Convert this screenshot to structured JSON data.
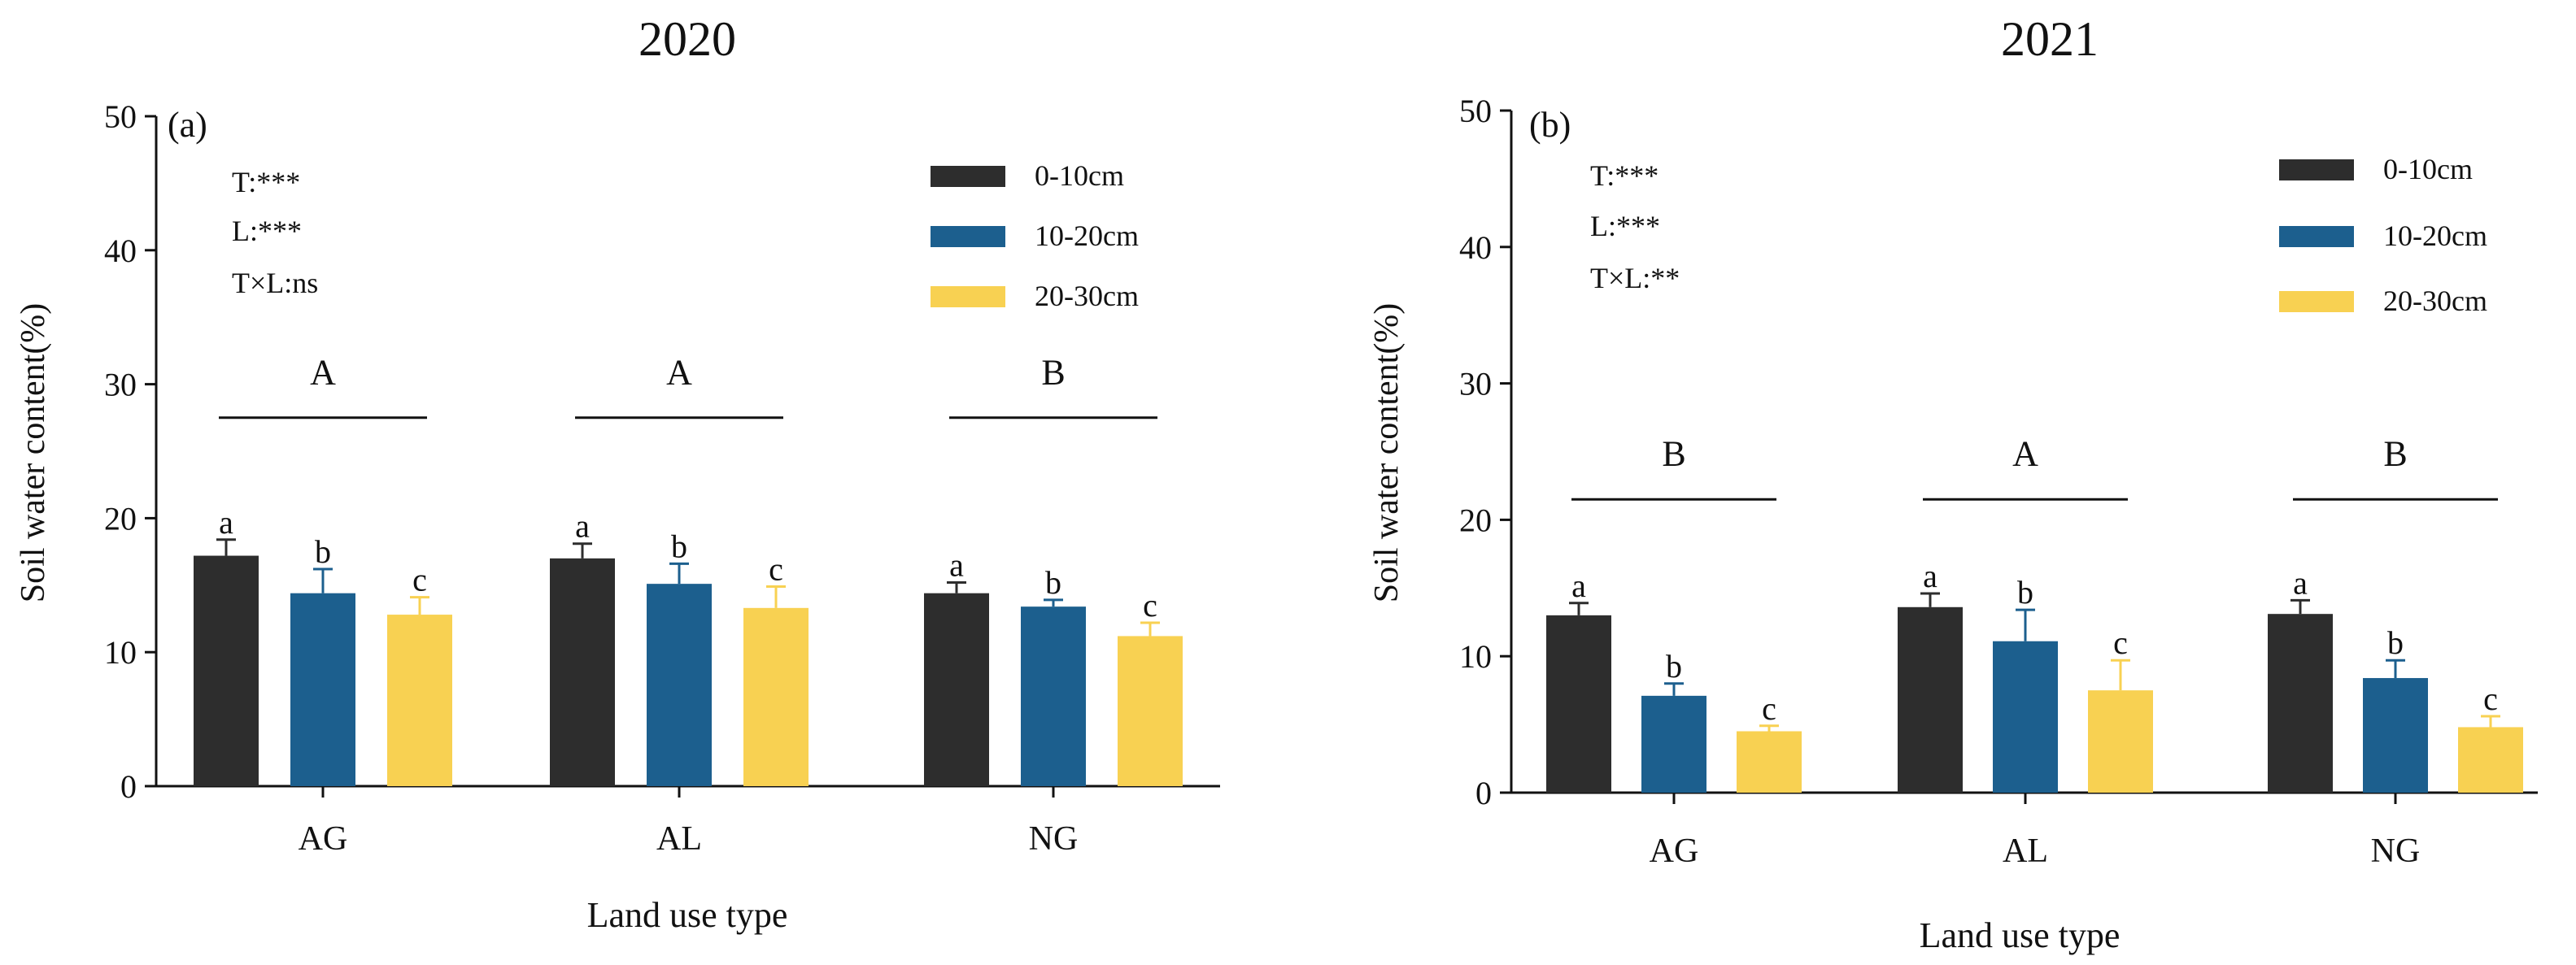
{
  "chart_data": [
    {
      "type": "bar",
      "title": "2020",
      "panel_label": "(a)",
      "xlabel": "Land use type",
      "ylabel": "Soil water content(%)",
      "ylim": [
        0,
        50
      ],
      "yticks": [
        "0",
        "10",
        "20",
        "30",
        "40",
        "50"
      ],
      "categories": [
        "AG",
        "AL",
        "NG"
      ],
      "series": [
        {
          "name": "0-10cm",
          "color": "#2d2d2d",
          "values": [
            17.2,
            17.0,
            14.4
          ],
          "errors": [
            1.2,
            1.1,
            0.8
          ],
          "letters": [
            "a",
            "a",
            "a"
          ]
        },
        {
          "name": "10-20cm",
          "color": "#1c5f8e",
          "values": [
            14.4,
            15.1,
            13.4
          ],
          "errors": [
            1.8,
            1.5,
            0.5
          ],
          "letters": [
            "b",
            "b",
            "b"
          ]
        },
        {
          "name": "20-30cm",
          "color": "#f8d152",
          "values": [
            12.8,
            13.3,
            11.2
          ],
          "errors": [
            1.3,
            1.6,
            1.0
          ],
          "letters": [
            "c",
            "c",
            "c"
          ]
        }
      ],
      "group_letters": [
        "A",
        "A",
        "B"
      ],
      "stats": [
        "T:***",
        "L:***",
        "T×L:ns"
      ]
    },
    {
      "type": "bar",
      "title": "2021",
      "panel_label": "(b)",
      "xlabel": "Land use type",
      "ylabel": "Soil water content(%)",
      "ylim": [
        0,
        50
      ],
      "yticks": [
        "0",
        "10",
        "20",
        "30",
        "40",
        "50"
      ],
      "categories": [
        "AG",
        "AL",
        "NG"
      ],
      "series": [
        {
          "name": "0-10cm",
          "color": "#2d2d2d",
          "values": [
            13.0,
            13.6,
            13.1
          ],
          "errors": [
            0.9,
            1.0,
            1.0
          ],
          "letters": [
            "a",
            "a",
            "a"
          ]
        },
        {
          "name": "10-20cm",
          "color": "#1c5f8e",
          "values": [
            7.1,
            11.1,
            8.4
          ],
          "errors": [
            0.9,
            2.3,
            1.3
          ],
          "letters": [
            "b",
            "b",
            "b"
          ]
        },
        {
          "name": "20-30cm",
          "color": "#f8d152",
          "values": [
            4.5,
            7.5,
            4.8
          ],
          "errors": [
            0.4,
            2.2,
            0.8
          ],
          "letters": [
            "c",
            "c",
            "c"
          ]
        }
      ],
      "group_letters": [
        "B",
        "A",
        "B"
      ],
      "stats": [
        "T:***",
        "L:***",
        "T×L:**"
      ]
    }
  ]
}
